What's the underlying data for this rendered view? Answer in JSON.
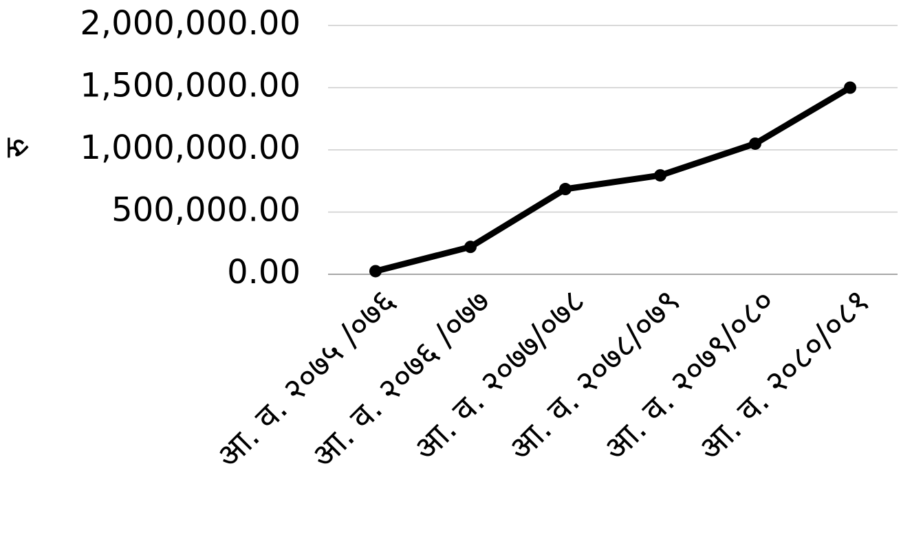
{
  "chart_data": {
    "type": "line",
    "y_label": "रु",
    "categories": [
      "आ. व. २०७५ /०७६",
      "आ. व. २०७६ /०७७",
      "आ. व. २०७७/०७८",
      "आ. व. २०७८/०७९",
      "आ. व. २०७९/०८०",
      "आ. व. २०८०/०८१"
    ],
    "series": [
      {
        "color": "#000000",
        "values": [
          25000,
          220000,
          685000,
          795000,
          1050000,
          1500000
        ]
      }
    ],
    "ylim": [
      0,
      2000000
    ],
    "yticks": [
      {
        "value": 0,
        "label": "0.00"
      },
      {
        "value": 500000,
        "label": "500,000.00"
      },
      {
        "value": 1000000,
        "label": "1,000,000.00"
      },
      {
        "value": 1500000,
        "label": "1,500,000.00"
      },
      {
        "value": 2000000,
        "label": "2,000,000.00"
      }
    ],
    "grid": true
  }
}
